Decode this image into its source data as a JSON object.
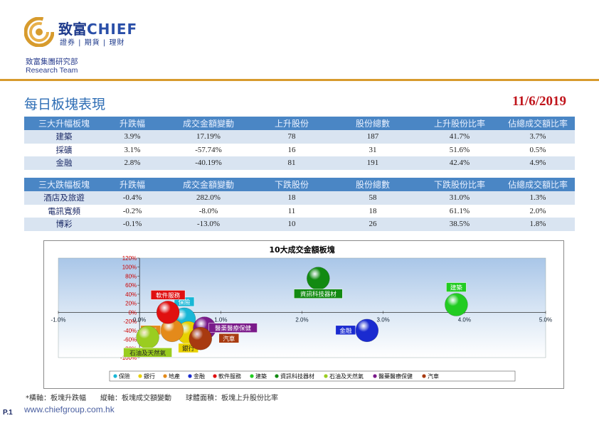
{
  "header": {
    "logo_name_cn": "致富",
    "logo_name_en": "CHIEF",
    "logo_sub": "證券 | 期貨 | 理財",
    "dept": "致富集團研究部",
    "team": "Research Team"
  },
  "page": {
    "title": "每日板塊表現",
    "date": "11/6/2019"
  },
  "table_up": {
    "headers": [
      "三大升幅板塊",
      "升跌幅",
      "成交金額變動",
      "上升股份",
      "股份總數",
      "上升股份比率",
      "佔總成交額比率"
    ],
    "rows": [
      [
        "建築",
        "3.9%",
        "17.19%",
        "78",
        "187",
        "41.7%",
        "3.7%"
      ],
      [
        "採礦",
        "3.1%",
        "-57.74%",
        "16",
        "31",
        "51.6%",
        "0.5%"
      ],
      [
        "金融",
        "2.8%",
        "-40.19%",
        "81",
        "191",
        "42.4%",
        "4.9%"
      ]
    ]
  },
  "table_down": {
    "headers": [
      "三大跌幅板塊",
      "升跌幅",
      "成交金額變動",
      "下跌股份",
      "股份總數",
      "下跌股份比率",
      "佔總成交額比率"
    ],
    "rows": [
      [
        "酒店及旅遊",
        "-0.4%",
        "282.0%",
        "18",
        "58",
        "31.0%",
        "1.3%"
      ],
      [
        "電訊寬頻",
        "-0.2%",
        "-8.0%",
        "11",
        "18",
        "61.1%",
        "2.0%"
      ],
      [
        "博彩",
        "-0.1%",
        "-13.0%",
        "10",
        "26",
        "38.5%",
        "1.8%"
      ]
    ]
  },
  "chart_data": {
    "type": "scatter",
    "title": "10大成交金額板塊",
    "xlim": [
      -1.0,
      5.0
    ],
    "ylim": [
      -100,
      120
    ],
    "x_ticks": [
      "-1.0%",
      "0.0%",
      "1.0%",
      "2.0%",
      "3.0%",
      "4.0%",
      "5.0%"
    ],
    "y_ticks": [
      "120%",
      "100%",
      "80%",
      "60%",
      "40%",
      "20%",
      "0%",
      "-20%",
      "-40%",
      "-60%",
      "-80%",
      "-100%"
    ],
    "legend_position": "bottom",
    "series": [
      {
        "name": "保險",
        "x": 0.55,
        "y": -15,
        "color": "#19b7d6",
        "label_pos": "above"
      },
      {
        "name": "銀行",
        "x": 0.6,
        "y": -45,
        "color": "#e8d000",
        "label_pos": "below"
      },
      {
        "name": "地產",
        "x": 0.4,
        "y": -40,
        "color": "#e48a1a",
        "label_pos": "left"
      },
      {
        "name": "金融",
        "x": 2.8,
        "y": -40,
        "color": "#1a2bd0",
        "label_pos": "left"
      },
      {
        "name": "軟件服務",
        "x": 0.35,
        "y": 0,
        "color": "#e01010",
        "label_pos": "above"
      },
      {
        "name": "建築",
        "x": 3.9,
        "y": 17,
        "color": "#22cc22",
        "label_pos": "above"
      },
      {
        "name": "資訊科技器材",
        "x": 2.2,
        "y": 75,
        "color": "#128a12",
        "label_pos": "below"
      },
      {
        "name": "石油及天然氣",
        "x": 0.1,
        "y": -55,
        "color": "#9acd20",
        "label_pos": "below"
      },
      {
        "name": "醫藥醫療保健",
        "x": 0.8,
        "y": -35,
        "color": "#7a1a8a",
        "label_pos": "right"
      },
      {
        "name": "汽車",
        "x": 0.75,
        "y": -58,
        "color": "#a83a10",
        "label_pos": "right"
      }
    ]
  },
  "footnote": "*橫軸：板塊升跌幅　　縱軸：板塊成交額變動　　球體面積：板塊上升股份比率",
  "footer": {
    "page_no": "P.1",
    "url": "www.chiefgroup.com.hk"
  },
  "colors": {
    "accent_rule": "#d79b2d",
    "table_header": "#4a86c5",
    "date_red": "#c0141b",
    "title_blue": "#2f6eb5"
  }
}
